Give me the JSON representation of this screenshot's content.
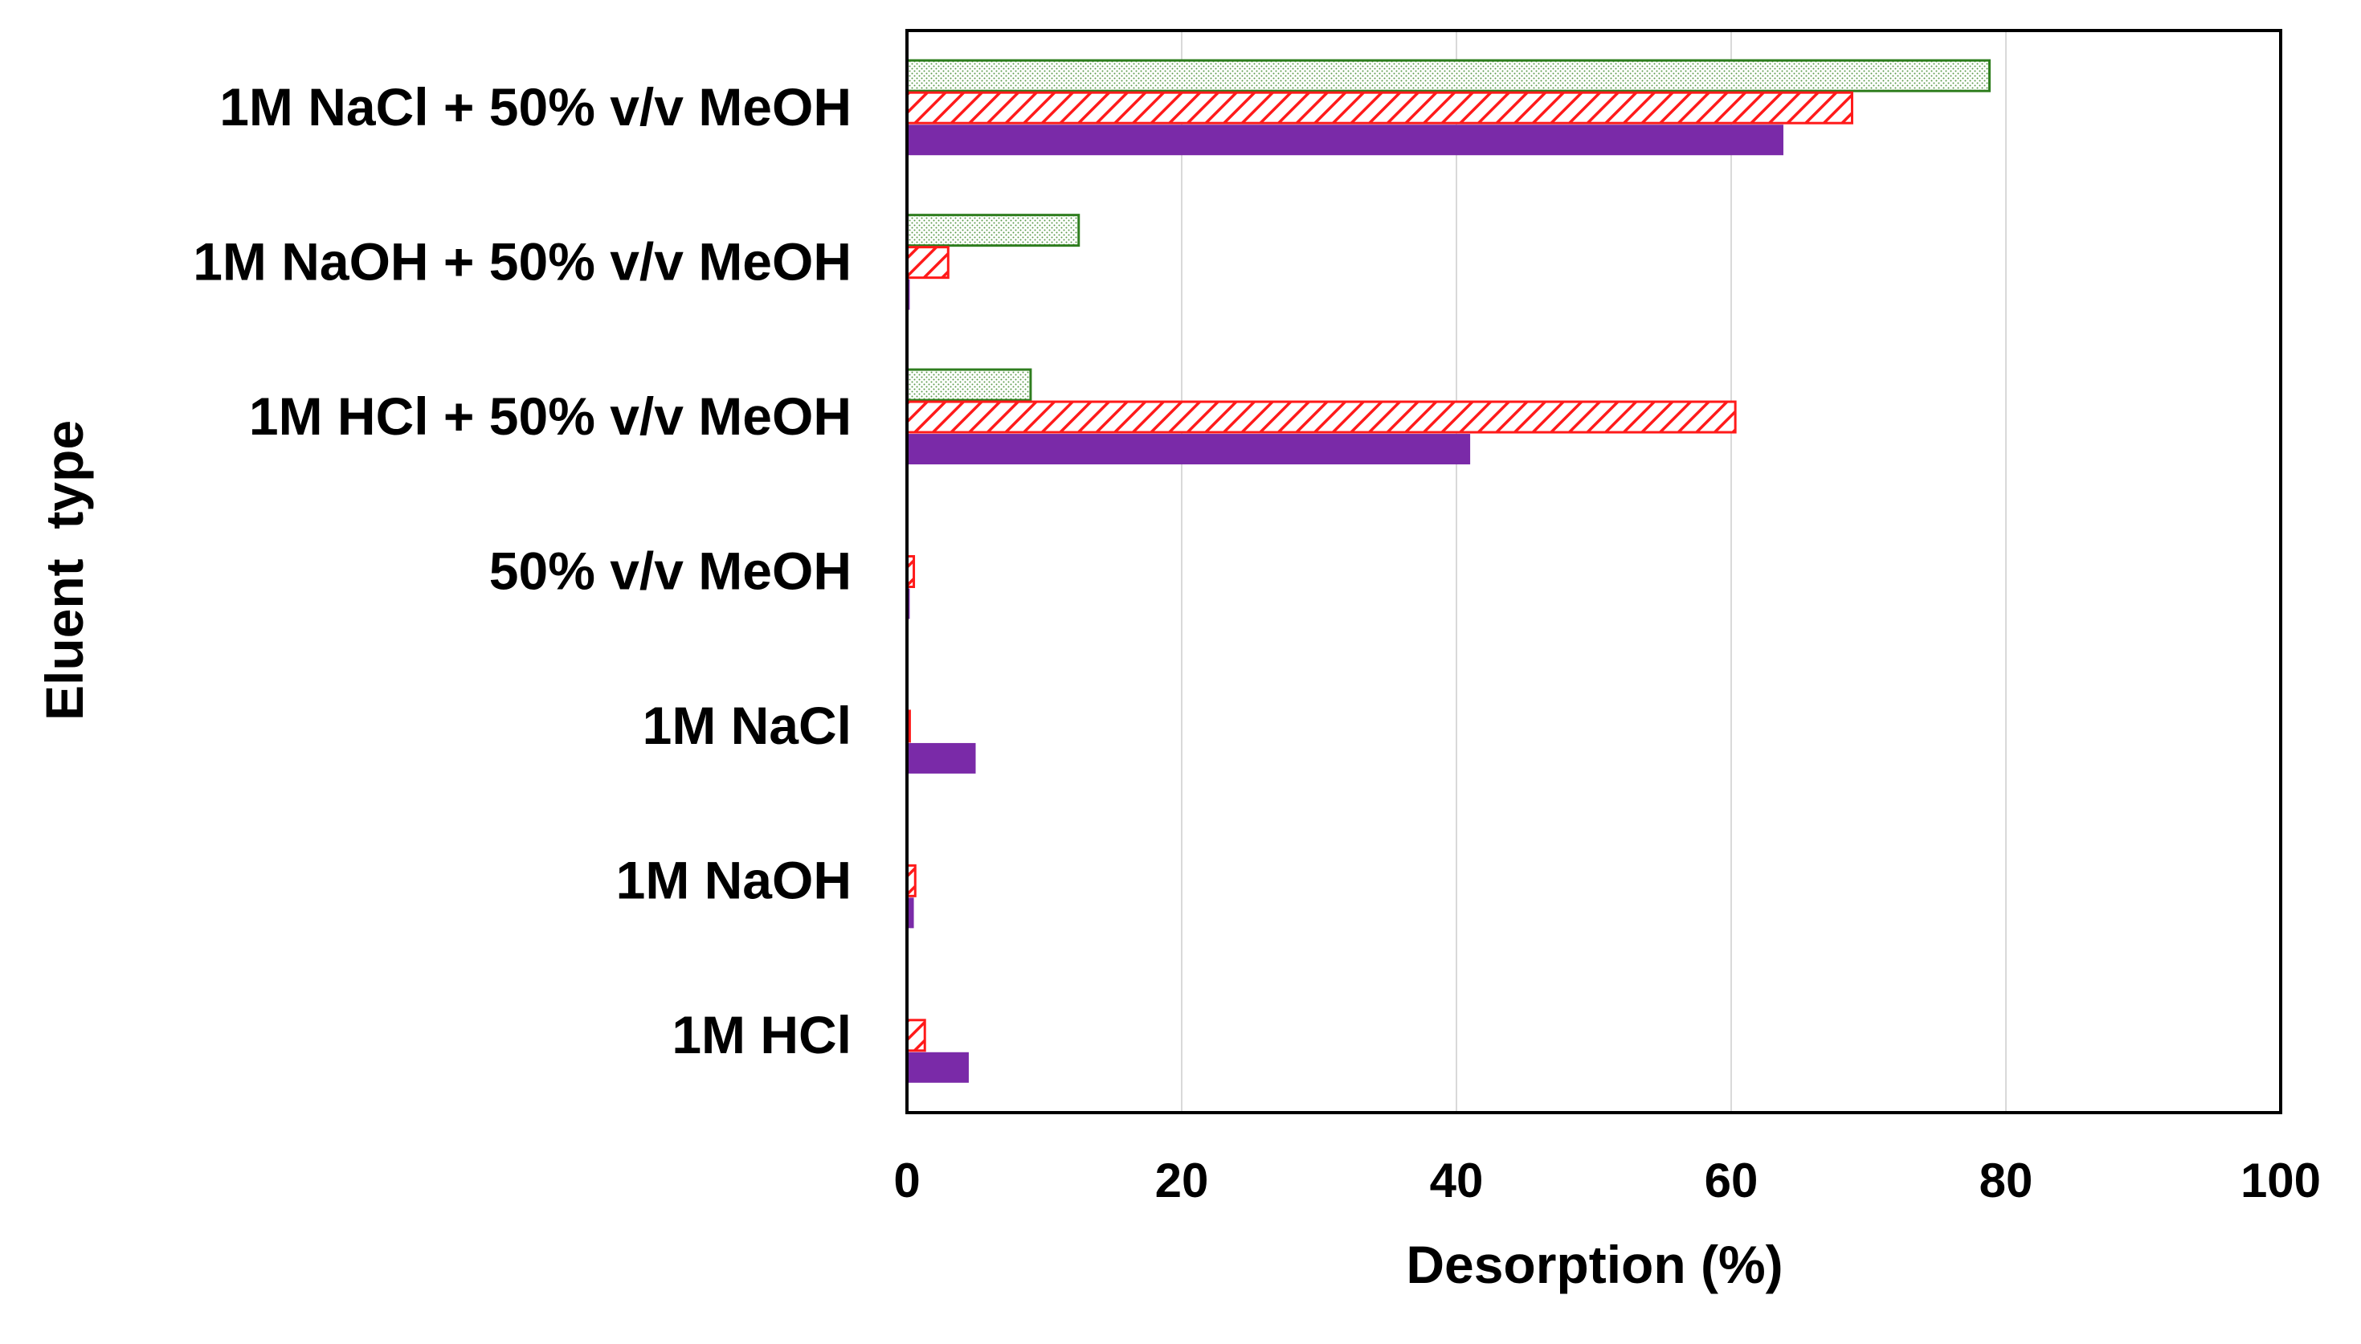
{
  "chart_data": {
    "type": "bar",
    "orientation": "horizontal",
    "title": "",
    "xlabel": "Desorption (%)",
    "ylabel": "Eluent  type",
    "xlim": [
      0,
      100
    ],
    "xticks": [
      "0",
      "20",
      "40",
      "60",
      "80",
      "100"
    ],
    "grid": "vertical",
    "legend": "none",
    "categories": [
      "1M NaCl + 50% v/v MeOH",
      "1M NaOH + 50% v/v MeOH",
      "1M HCl + 50% v/v MeOH",
      "50% v/v MeOH",
      "1M NaCl",
      "1M NaOH",
      "1M HCl"
    ],
    "series": [
      {
        "name": "series-green-dotted",
        "color": "#2e7d1e",
        "pattern": "dotted",
        "values": [
          78.8,
          12.5,
          9.0,
          0,
          0,
          0,
          0
        ]
      },
      {
        "name": "series-red-hatched",
        "color": "#ff1a1a",
        "pattern": "hatched",
        "values": [
          68.8,
          3.0,
          60.3,
          0.5,
          0.2,
          0.6,
          1.3
        ]
      },
      {
        "name": "series-purple-solid",
        "color": "#7a2aa8",
        "pattern": "solid",
        "values": [
          63.8,
          0.2,
          41.0,
          0.2,
          5.0,
          0.5,
          4.5
        ]
      }
    ]
  }
}
